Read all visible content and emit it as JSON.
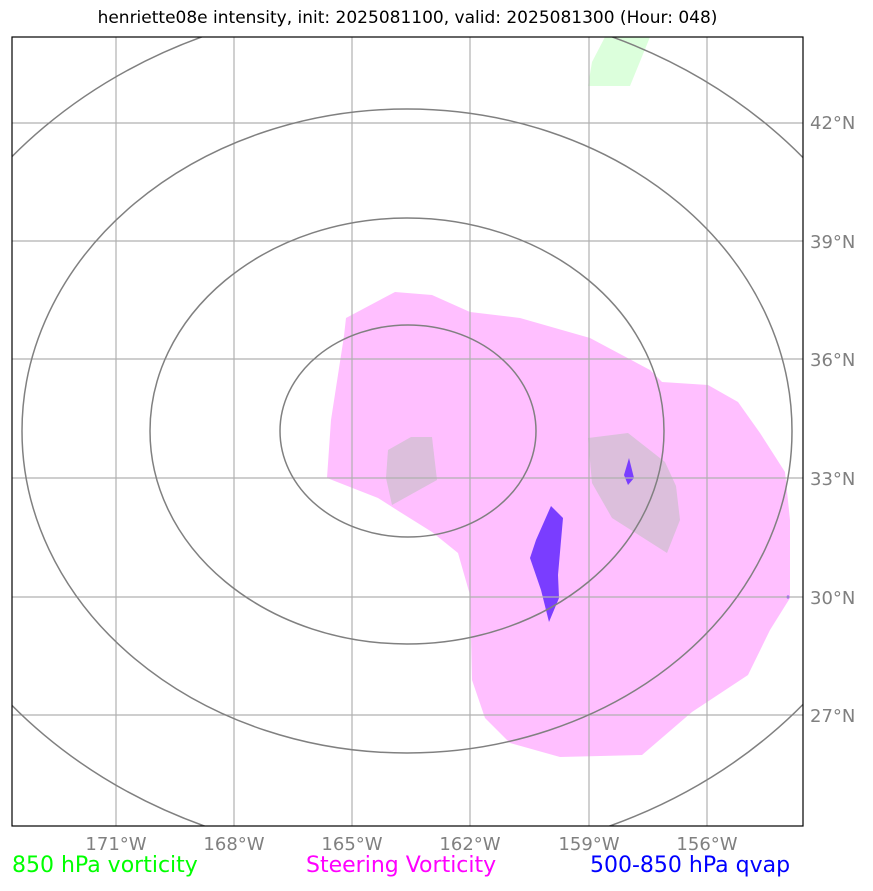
{
  "title": "henriette08e intensity, init: 2025081100, valid: 2025081300 (Hour: 048)",
  "map": {
    "lon_ticks": [
      "171°W",
      "168°W",
      "165°W",
      "162°W",
      "159°W",
      "156°W"
    ],
    "lat_ticks": [
      "42°N",
      "39°N",
      "36°N",
      "33°N",
      "30°N",
      "27°N"
    ],
    "gridline_color": "#b0b0b0",
    "contour_color": "#808080"
  },
  "legend": {
    "vort850": {
      "label": "850 hPa vorticity",
      "color": "#00ff00"
    },
    "steering": {
      "label": "Steering Vorticity",
      "color": "#ff00ff"
    },
    "qvap": {
      "label": "500-850 hPa qvap",
      "color": "#0000ff"
    }
  },
  "fields": {
    "vort850_fill": "#dcffdc",
    "steering_fill": "#ffbfff",
    "overlap_fill": "#dcbfdc",
    "qvap_fill": "#7a3dff"
  }
}
